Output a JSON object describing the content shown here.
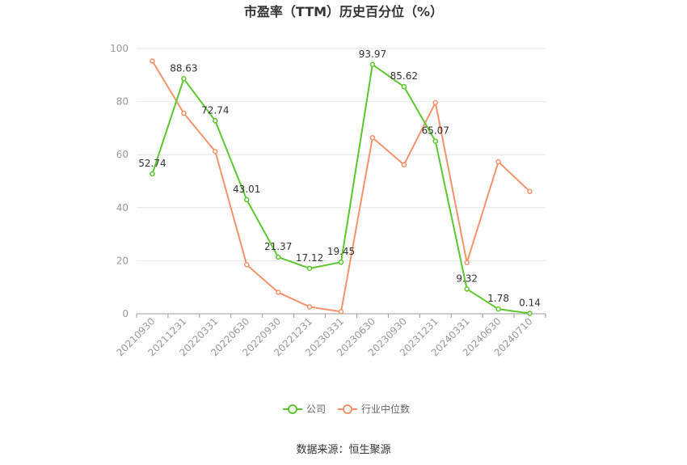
{
  "chart_data": {
    "type": "line",
    "title": "市盈率（TTM）历史百分位（%）",
    "xlabel": "",
    "ylabel": "",
    "ylim": [
      0,
      100
    ],
    "yticks": [
      0,
      20,
      40,
      60,
      80,
      100
    ],
    "grid": true,
    "legend_position": "bottom-center",
    "categories": [
      "20210930",
      "20211231",
      "20220331",
      "20220630",
      "20220930",
      "20221231",
      "20230331",
      "20230630",
      "20230930",
      "20231231",
      "20240331",
      "20240630",
      "20240710"
    ],
    "series": [
      {
        "name": "公司",
        "color": "#5cc72f",
        "values": [
          52.74,
          88.63,
          72.74,
          43.01,
          21.37,
          17.12,
          19.45,
          93.97,
          85.62,
          65.07,
          9.32,
          1.78,
          0.14
        ],
        "data_labels": [
          "52.74",
          "88.63",
          "72.74",
          "43.01",
          "21.37",
          "17.12",
          "19.45",
          "93.97",
          "85.62",
          "65.07",
          "9.32",
          "1.78",
          "0.14"
        ]
      },
      {
        "name": "行业中位数",
        "color": "#f5926b",
        "values": [
          95.3,
          75.6,
          61.2,
          18.5,
          8.1,
          2.6,
          0.8,
          66.4,
          56.2,
          79.6,
          19.3,
          57.3,
          46.1
        ]
      }
    ]
  },
  "source": "数据来源：恒生聚源"
}
